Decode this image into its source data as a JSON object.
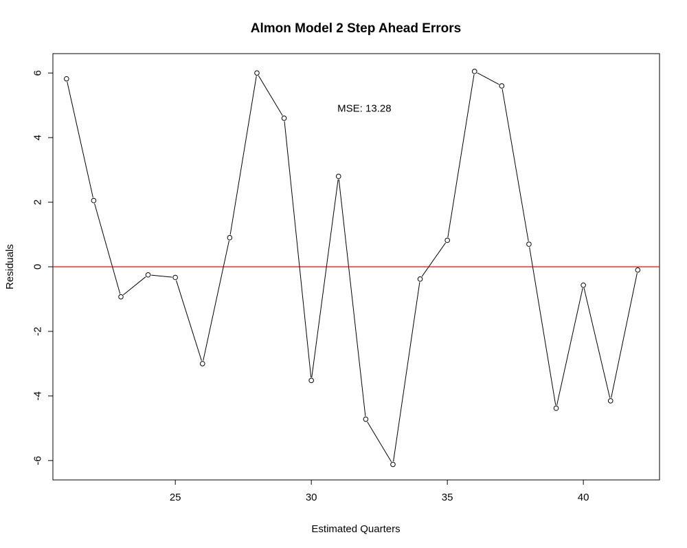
{
  "chart_data": {
    "type": "line",
    "title": "Almon Model 2 Step Ahead Errors",
    "xlabel": "Estimated Quarters",
    "ylabel": "Residuals",
    "xlim": [
      20.5,
      42.8
    ],
    "ylim": [
      -6.6,
      6.6
    ],
    "xticks": [
      25,
      30,
      35,
      40
    ],
    "yticks": [
      -6,
      -4,
      -2,
      0,
      2,
      4,
      6
    ],
    "x": [
      21,
      22,
      23,
      24,
      25,
      26,
      27,
      28,
      29,
      30,
      31,
      32,
      33,
      34,
      35,
      36,
      37,
      38,
      39,
      40,
      41,
      42
    ],
    "series": [
      {
        "values": [
          5.82,
          2.05,
          -0.93,
          -0.25,
          -0.33,
          -3.0,
          0.9,
          6.0,
          4.6,
          -3.52,
          2.8,
          -4.72,
          -6.12,
          -0.38,
          0.82,
          6.05,
          5.6,
          0.7,
          -4.38,
          -0.57,
          -4.15,
          -0.1
        ],
        "color": "#000000",
        "marker": "open-circle"
      }
    ],
    "reference_line": {
      "y": 0,
      "color": "#ff0000"
    },
    "annotations": [
      {
        "text": "MSE: 13.28",
        "x": 31.95,
        "y": 4.9
      }
    ],
    "grid": false,
    "legend": "none"
  }
}
